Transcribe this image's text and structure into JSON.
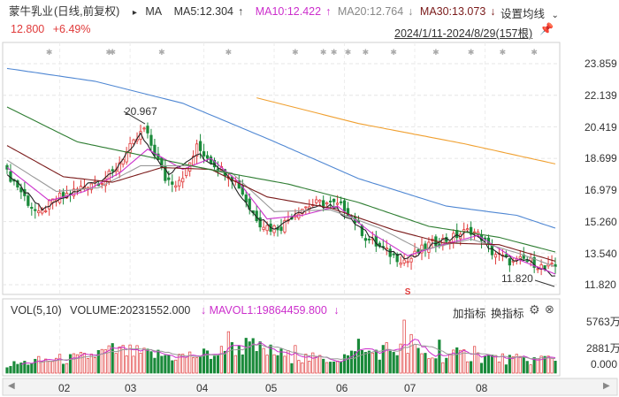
{
  "stock": {
    "name": "蒙牛乳业",
    "mode": "(日线,前复权)",
    "ma_label": "MA",
    "ma5": "MA5:12.304",
    "ma10": "MA10:12.422",
    "ma20": "MA20:12.764",
    "ma30": "MA30:13.073",
    "settings": "设置均线",
    "price": "12.800",
    "change": "+6.49%",
    "range": "2024/1/11-2024/8/29(157根)"
  },
  "volume_panel": {
    "label": "VOL(5,10)",
    "volume": "VOLUME:20231552.000",
    "mavol1": "MAVOL1:19864459.800",
    "btn_add": "加指标",
    "btn_swap": "换指标"
  },
  "colors": {
    "up": "#e03a3a",
    "down": "#1a8a3a",
    "ma5": "#222222",
    "ma10": "#cc2fcc",
    "ma20": "#999999",
    "ma30": "#7a1a1a",
    "ma60": "#2e7d32",
    "ma120": "#4f87d3",
    "ma250": "#f0a030"
  },
  "chart_data": {
    "type": "candlestick",
    "y_ticks": [
      "23.859",
      "22.139",
      "20.419",
      "18.699",
      "16.979",
      "15.260",
      "13.540",
      "11.820"
    ],
    "ylim": [
      11.82,
      23.859
    ],
    "x_ticks": [
      "02",
      "03",
      "04",
      "05",
      "06",
      "07",
      "08"
    ],
    "annotations": {
      "high": "20.967",
      "low": "11.820"
    },
    "vol_ticks": [
      "5763万",
      "2881万",
      "0.000"
    ],
    "vol_max": 5763,
    "series": {
      "close_path": [
        [
          0,
          17.9
        ],
        [
          3,
          17.2
        ],
        [
          6,
          16.3
        ],
        [
          9,
          15.6
        ],
        [
          12,
          16.2
        ],
        [
          15,
          16.6
        ],
        [
          18,
          16.8
        ],
        [
          21,
          17.1
        ],
        [
          24,
          17.4
        ],
        [
          27,
          17.5
        ],
        [
          30,
          17.9
        ],
        [
          33,
          18.8
        ],
        [
          36,
          19.5
        ],
        [
          39,
          20.3
        ],
        [
          42,
          19.0
        ],
        [
          45,
          17.6
        ],
        [
          48,
          17.4
        ],
        [
          51,
          18.0
        ],
        [
          54,
          19.3
        ],
        [
          57,
          18.8
        ],
        [
          60,
          18.2
        ],
        [
          63,
          17.9
        ],
        [
          66,
          17.2
        ],
        [
          69,
          16.0
        ],
        [
          72,
          15.2
        ],
        [
          75,
          14.9
        ],
        [
          78,
          15.0
        ],
        [
          81,
          15.6
        ],
        [
          84,
          16.0
        ],
        [
          87,
          16.2
        ],
        [
          90,
          16.3
        ],
        [
          93,
          16.2
        ],
        [
          96,
          16.0
        ],
        [
          99,
          15.3
        ],
        [
          102,
          14.4
        ],
        [
          105,
          14.0
        ],
        [
          108,
          13.6
        ],
        [
          111,
          13.3
        ],
        [
          114,
          13.1
        ],
        [
          117,
          13.6
        ],
        [
          120,
          14.0
        ],
        [
          123,
          14.2
        ],
        [
          126,
          14.3
        ],
        [
          129,
          14.6
        ],
        [
          132,
          14.8
        ],
        [
          135,
          14.4
        ],
        [
          138,
          13.6
        ],
        [
          141,
          13.3
        ],
        [
          144,
          13.0
        ],
        [
          147,
          13.2
        ],
        [
          150,
          13.0
        ],
        [
          153,
          12.7
        ],
        [
          156,
          12.8
        ]
      ],
      "ma_lines": [
        {
          "key": "ma5",
          "pts": [
            [
              0,
              17.9
            ],
            [
              10,
              15.9
            ],
            [
              20,
              17.0
            ],
            [
              30,
              17.8
            ],
            [
              38,
              20.0
            ],
            [
              46,
              17.8
            ],
            [
              54,
              19.0
            ],
            [
              62,
              18.0
            ],
            [
              70,
              15.7
            ],
            [
              76,
              14.9
            ],
            [
              84,
              15.8
            ],
            [
              92,
              16.2
            ],
            [
              100,
              15.0
            ],
            [
              108,
              13.7
            ],
            [
              114,
              13.2
            ],
            [
              122,
              14.1
            ],
            [
              132,
              14.7
            ],
            [
              140,
              13.4
            ],
            [
              148,
              13.1
            ],
            [
              156,
              12.3
            ]
          ]
        },
        {
          "key": "ma10",
          "pts": [
            [
              0,
              18.2
            ],
            [
              12,
              16.4
            ],
            [
              22,
              16.9
            ],
            [
              32,
              17.9
            ],
            [
              40,
              19.2
            ],
            [
              50,
              18.1
            ],
            [
              58,
              18.7
            ],
            [
              66,
              17.4
            ],
            [
              74,
              15.4
            ],
            [
              84,
              15.6
            ],
            [
              94,
              16.1
            ],
            [
              104,
              14.6
            ],
            [
              114,
              13.4
            ],
            [
              124,
              14.0
            ],
            [
              134,
              14.5
            ],
            [
              144,
              13.3
            ],
            [
              156,
              12.4
            ]
          ]
        },
        {
          "key": "ma20",
          "pts": [
            [
              0,
              18.6
            ],
            [
              14,
              16.9
            ],
            [
              26,
              17.1
            ],
            [
              38,
              18.3
            ],
            [
              52,
              18.3
            ],
            [
              64,
              17.9
            ],
            [
              76,
              15.8
            ],
            [
              92,
              15.9
            ],
            [
              106,
              14.9
            ],
            [
              118,
              13.7
            ],
            [
              132,
              14.3
            ],
            [
              146,
              13.5
            ],
            [
              156,
              12.8
            ]
          ]
        },
        {
          "key": "ma30",
          "pts": [
            [
              0,
              19.4
            ],
            [
              16,
              17.7
            ],
            [
              30,
              17.4
            ],
            [
              44,
              18.2
            ],
            [
              58,
              18.1
            ],
            [
              74,
              16.6
            ],
            [
              92,
              16.0
            ],
            [
              110,
              14.8
            ],
            [
              124,
              14.1
            ],
            [
              140,
              14.0
            ],
            [
              156,
              13.1
            ]
          ]
        },
        {
          "key": "ma60",
          "pts": [
            [
              0,
              21.5
            ],
            [
              20,
              19.6
            ],
            [
              40,
              18.8
            ],
            [
              60,
              18.0
            ],
            [
              80,
              17.3
            ],
            [
              100,
              16.3
            ],
            [
              120,
              15.0
            ],
            [
              140,
              14.4
            ],
            [
              156,
              13.6
            ]
          ]
        },
        {
          "key": "ma120",
          "pts": [
            [
              0,
              23.6
            ],
            [
              25,
              22.9
            ],
            [
              50,
              21.7
            ],
            [
              75,
              19.7
            ],
            [
              100,
              17.6
            ],
            [
              125,
              16.1
            ],
            [
              145,
              15.6
            ],
            [
              156,
              14.9
            ]
          ]
        },
        {
          "key": "ma250",
          "pts": [
            [
              71,
              22.0
            ],
            [
              100,
              20.6
            ],
            [
              130,
              19.5
            ],
            [
              156,
              18.4
            ]
          ]
        }
      ],
      "volume_profile": [
        [
          0,
          800
        ],
        [
          10,
          1300
        ],
        [
          20,
          1500
        ],
        [
          30,
          2300
        ],
        [
          40,
          1900
        ],
        [
          50,
          1700
        ],
        [
          60,
          2000
        ],
        [
          66,
          2800
        ],
        [
          70,
          2600
        ],
        [
          80,
          1700
        ],
        [
          90,
          1400
        ],
        [
          100,
          1900
        ],
        [
          108,
          2400
        ],
        [
          114,
          2500
        ],
        [
          120,
          1700
        ],
        [
          130,
          1900
        ],
        [
          140,
          1500
        ],
        [
          148,
          1300
        ],
        [
          156,
          1600
        ]
      ],
      "volume_spikes": [
        [
          63,
          4500
        ],
        [
          82,
          3000
        ],
        [
          100,
          3700
        ],
        [
          113,
          5763
        ],
        [
          115,
          4200
        ],
        [
          123,
          3600
        ],
        [
          133,
          2900
        ]
      ]
    }
  }
}
